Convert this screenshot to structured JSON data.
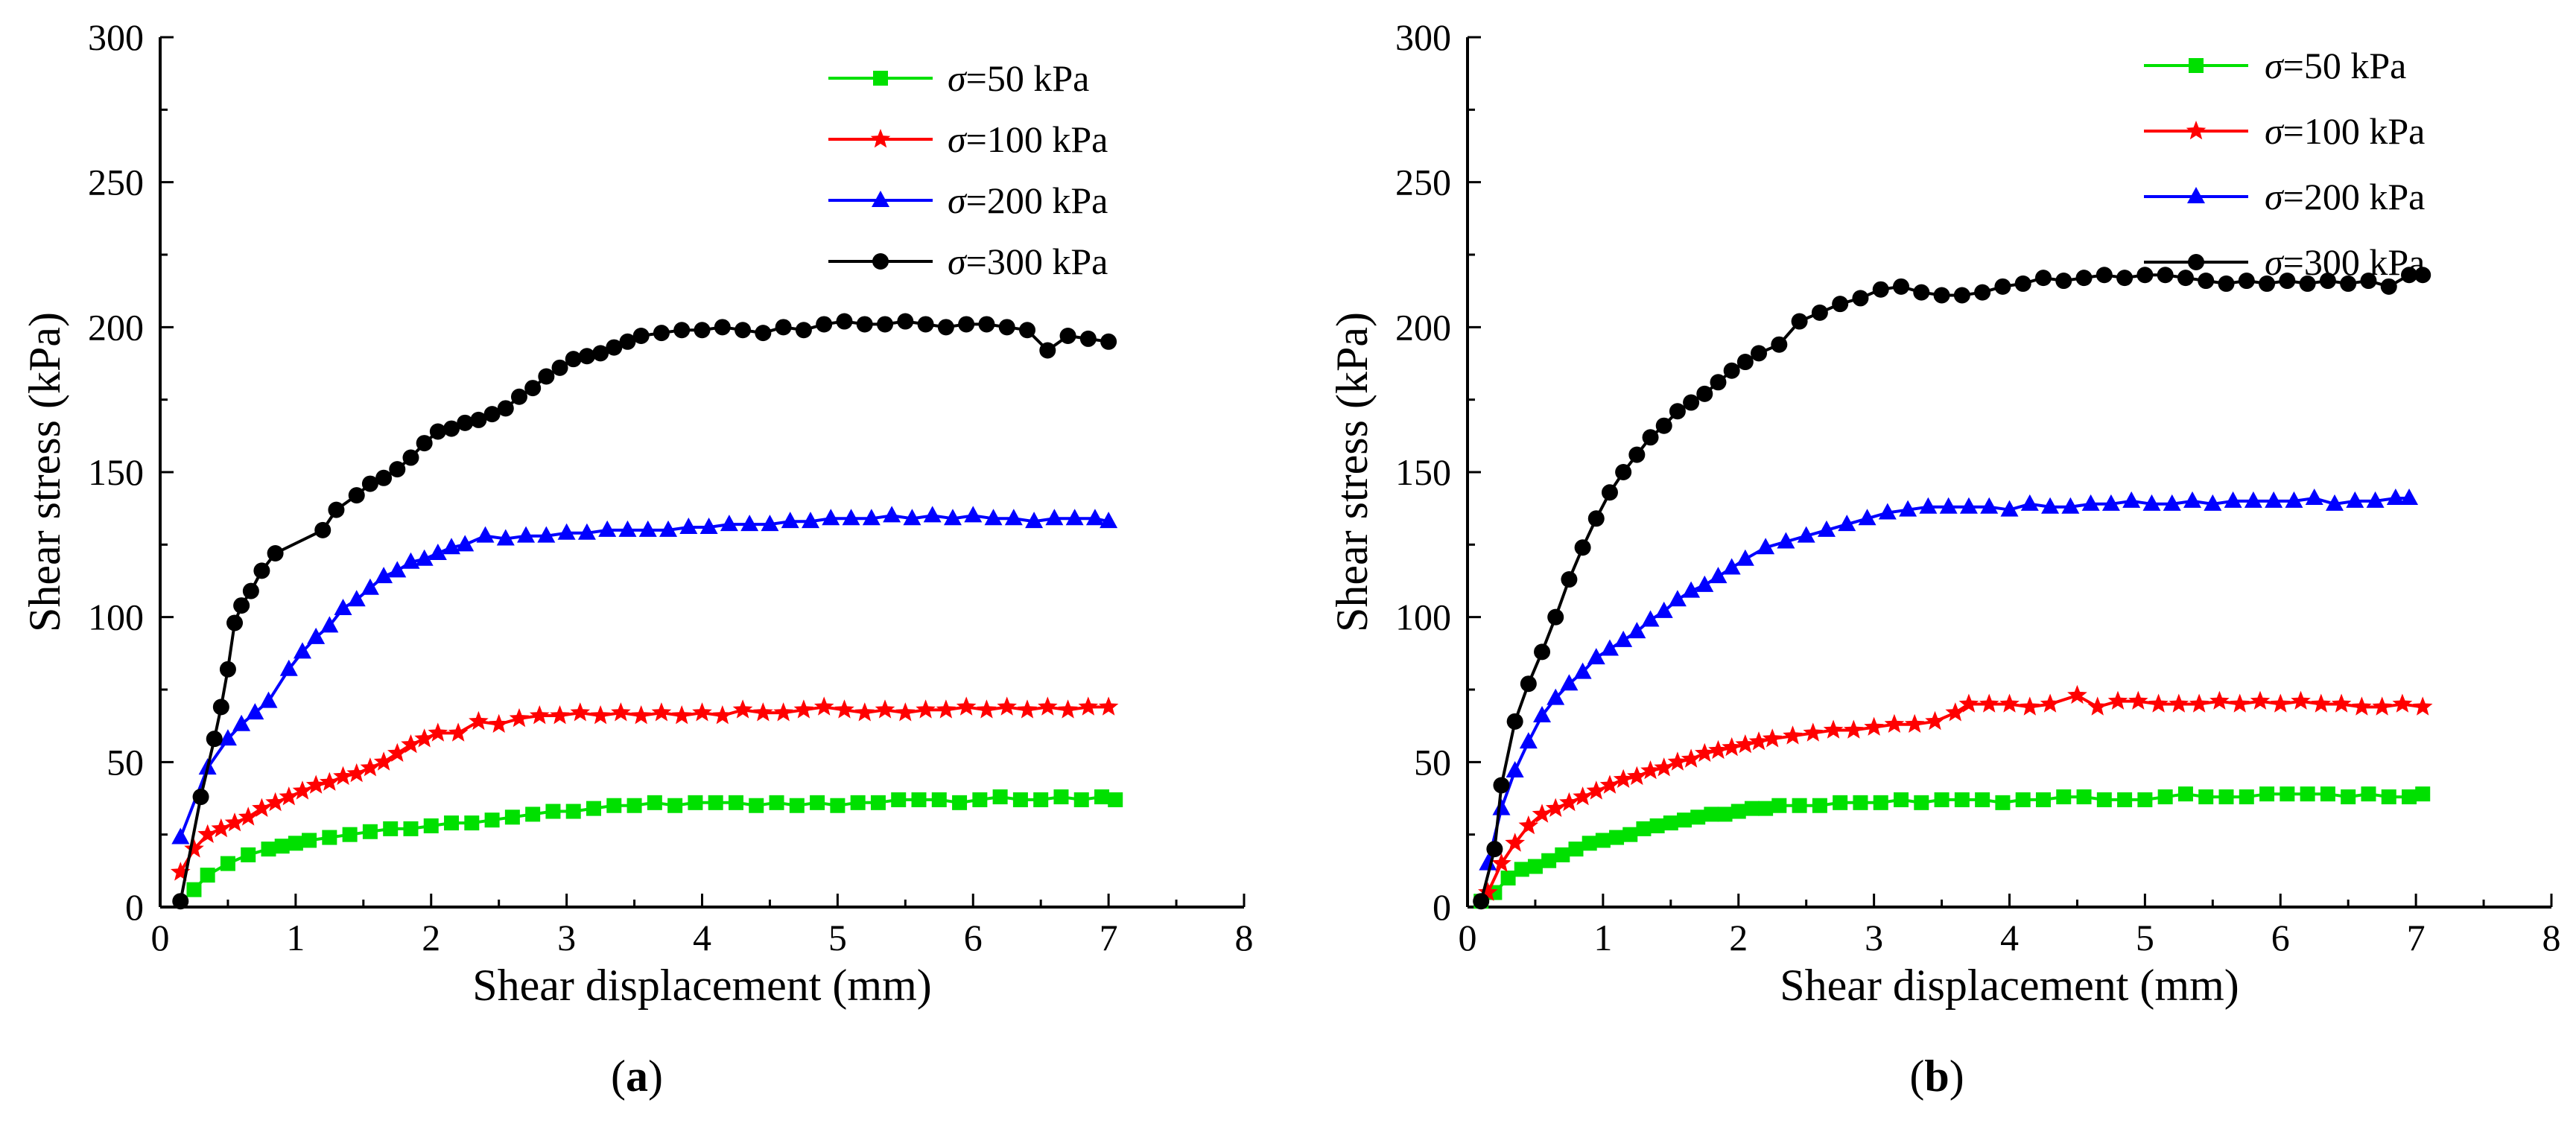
{
  "chart_data": [
    {
      "panel": "a",
      "caption": {
        "open": "(",
        "letter": "a",
        "close": ")"
      },
      "type": "line",
      "title": "",
      "xlabel": "Shear displacement (mm)",
      "ylabel": "Shear stress (kPa)",
      "xlim": [
        0,
        8
      ],
      "ylim": [
        0,
        300
      ],
      "xticks": [
        0,
        1,
        2,
        3,
        4,
        5,
        6,
        7,
        8
      ],
      "yticks": [
        0,
        50,
        100,
        150,
        200,
        250,
        300
      ],
      "grid": false,
      "legend_position": "top-right",
      "series": [
        {
          "name": "σ=50 kPa",
          "symbol": "σ",
          "label_rest": "=50 kPa",
          "color": "#00e000",
          "marker": "square",
          "x": [
            0.25,
            0.35,
            0.5,
            0.65,
            0.8,
            0.9,
            1.0,
            1.1,
            1.25,
            1.4,
            1.55,
            1.7,
            1.85,
            2.0,
            2.15,
            2.3,
            2.45,
            2.6,
            2.75,
            2.9,
            3.05,
            3.2,
            3.35,
            3.5,
            3.65,
            3.8,
            3.95,
            4.1,
            4.25,
            4.4,
            4.55,
            4.7,
            4.85,
            5.0,
            5.15,
            5.3,
            5.45,
            5.6,
            5.75,
            5.9,
            6.05,
            6.2,
            6.35,
            6.5,
            6.65,
            6.8,
            6.95,
            7.05
          ],
          "y": [
            6,
            11,
            15,
            18,
            20,
            21,
            22,
            23,
            24,
            25,
            26,
            27,
            27,
            28,
            29,
            29,
            30,
            31,
            32,
            33,
            33,
            34,
            35,
            35,
            36,
            35,
            36,
            36,
            36,
            35,
            36,
            35,
            36,
            35,
            36,
            36,
            37,
            37,
            37,
            36,
            37,
            38,
            37,
            37,
            38,
            37,
            38,
            37
          ]
        },
        {
          "name": "σ=100 kPa",
          "symbol": "σ",
          "label_rest": "=100 kPa",
          "color": "#ff0000",
          "marker": "star",
          "x": [
            0.15,
            0.25,
            0.35,
            0.45,
            0.55,
            0.65,
            0.75,
            0.85,
            0.95,
            1.05,
            1.15,
            1.25,
            1.35,
            1.45,
            1.55,
            1.65,
            1.75,
            1.85,
            1.95,
            2.05,
            2.2,
            2.35,
            2.5,
            2.65,
            2.8,
            2.95,
            3.1,
            3.25,
            3.4,
            3.55,
            3.7,
            3.85,
            4.0,
            4.15,
            4.3,
            4.45,
            4.6,
            4.75,
            4.9,
            5.05,
            5.2,
            5.35,
            5.5,
            5.65,
            5.8,
            5.95,
            6.1,
            6.25,
            6.4,
            6.55,
            6.7,
            6.85,
            7.0
          ],
          "y": [
            12,
            20,
            25,
            27,
            29,
            31,
            34,
            36,
            38,
            40,
            42,
            43,
            45,
            46,
            48,
            50,
            53,
            56,
            58,
            60,
            60,
            64,
            63,
            65,
            66,
            66,
            67,
            66,
            67,
            66,
            67,
            66,
            67,
            66,
            68,
            67,
            67,
            68,
            69,
            68,
            67,
            68,
            67,
            68,
            68,
            69,
            68,
            69,
            68,
            69,
            68,
            69,
            69
          ]
        },
        {
          "name": "σ=200 kPa",
          "symbol": "σ",
          "label_rest": "=200 kPa",
          "color": "#0000ff",
          "marker": "triangle",
          "x": [
            0.15,
            0.35,
            0.5,
            0.6,
            0.7,
            0.8,
            0.95,
            1.05,
            1.15,
            1.25,
            1.35,
            1.45,
            1.55,
            1.65,
            1.75,
            1.85,
            1.95,
            2.05,
            2.15,
            2.25,
            2.4,
            2.55,
            2.7,
            2.85,
            3.0,
            3.15,
            3.3,
            3.45,
            3.6,
            3.75,
            3.9,
            4.05,
            4.2,
            4.35,
            4.5,
            4.65,
            4.8,
            4.95,
            5.1,
            5.25,
            5.4,
            5.55,
            5.7,
            5.85,
            6.0,
            6.15,
            6.3,
            6.45,
            6.6,
            6.75,
            6.9,
            7.0
          ],
          "y": [
            24,
            48,
            58,
            63,
            67,
            71,
            82,
            88,
            93,
            97,
            103,
            106,
            110,
            114,
            116,
            119,
            120,
            122,
            124,
            125,
            128,
            127,
            128,
            128,
            129,
            129,
            130,
            130,
            130,
            130,
            131,
            131,
            132,
            132,
            132,
            133,
            133,
            134,
            134,
            134,
            135,
            134,
            135,
            134,
            135,
            134,
            134,
            133,
            134,
            134,
            134,
            133
          ]
        },
        {
          "name": "σ=300 kPa",
          "symbol": "σ",
          "label_rest": "=300 kPa",
          "color": "#000000",
          "marker": "circle",
          "x": [
            0.15,
            0.3,
            0.4,
            0.45,
            0.5,
            0.55,
            0.6,
            0.67,
            0.75,
            0.85,
            1.2,
            1.3,
            1.45,
            1.55,
            1.65,
            1.75,
            1.85,
            1.95,
            2.05,
            2.15,
            2.25,
            2.35,
            2.45,
            2.55,
            2.65,
            2.75,
            2.85,
            2.95,
            3.05,
            3.15,
            3.25,
            3.35,
            3.45,
            3.55,
            3.7,
            3.85,
            4.0,
            4.15,
            4.3,
            4.45,
            4.6,
            4.75,
            4.9,
            5.05,
            5.2,
            5.35,
            5.5,
            5.65,
            5.8,
            5.95,
            6.1,
            6.25,
            6.4,
            6.55,
            6.7,
            6.85,
            7.0
          ],
          "y": [
            2,
            38,
            58,
            69,
            82,
            98,
            104,
            109,
            116,
            122,
            130,
            137,
            142,
            146,
            148,
            151,
            155,
            160,
            164,
            165,
            167,
            168,
            170,
            172,
            176,
            179,
            183,
            186,
            189,
            190,
            191,
            193,
            195,
            197,
            198,
            199,
            199,
            200,
            199,
            198,
            200,
            199,
            201,
            202,
            201,
            201,
            202,
            201,
            200,
            201,
            201,
            200,
            199,
            192,
            197,
            196,
            195
          ]
        }
      ]
    },
    {
      "panel": "b",
      "caption": {
        "open": "(",
        "letter": "b",
        "close": ")"
      },
      "type": "line",
      "title": "",
      "xlabel": "Shear displacement (mm)",
      "ylabel": "Shear stress (kPa)",
      "xlim": [
        0,
        8
      ],
      "ylim": [
        0,
        300
      ],
      "xticks": [
        0,
        1,
        2,
        3,
        4,
        5,
        6,
        7,
        8
      ],
      "yticks": [
        0,
        50,
        100,
        150,
        200,
        250,
        300
      ],
      "grid": false,
      "legend_position": "top-right",
      "series": [
        {
          "name": "σ=50 kPa",
          "symbol": "σ",
          "label_rest": "=50 kPa",
          "color": "#00e000",
          "marker": "square",
          "x": [
            0.1,
            0.2,
            0.3,
            0.4,
            0.5,
            0.6,
            0.7,
            0.8,
            0.9,
            1.0,
            1.1,
            1.2,
            1.3,
            1.4,
            1.5,
            1.6,
            1.7,
            1.8,
            1.9,
            2.0,
            2.1,
            2.2,
            2.3,
            2.45,
            2.6,
            2.75,
            2.9,
            3.05,
            3.2,
            3.35,
            3.5,
            3.65,
            3.8,
            3.95,
            4.1,
            4.25,
            4.4,
            4.55,
            4.7,
            4.85,
            5.0,
            5.15,
            5.3,
            5.45,
            5.6,
            5.75,
            5.9,
            6.05,
            6.2,
            6.35,
            6.5,
            6.65,
            6.8,
            6.95,
            7.05
          ],
          "y": [
            2,
            5,
            10,
            13,
            14,
            16,
            18,
            20,
            22,
            23,
            24,
            25,
            27,
            28,
            29,
            30,
            31,
            32,
            32,
            33,
            34,
            34,
            35,
            35,
            35,
            36,
            36,
            36,
            37,
            36,
            37,
            37,
            37,
            36,
            37,
            37,
            38,
            38,
            37,
            37,
            37,
            38,
            39,
            38,
            38,
            38,
            39,
            39,
            39,
            39,
            38,
            39,
            38,
            38,
            39
          ]
        },
        {
          "name": "σ=100 kPa",
          "symbol": "σ",
          "label_rest": "=100 kPa",
          "color": "#ff0000",
          "marker": "star",
          "x": [
            0.15,
            0.25,
            0.35,
            0.45,
            0.55,
            0.65,
            0.75,
            0.85,
            0.95,
            1.05,
            1.15,
            1.25,
            1.35,
            1.45,
            1.55,
            1.65,
            1.75,
            1.85,
            1.95,
            2.05,
            2.15,
            2.25,
            2.4,
            2.55,
            2.7,
            2.85,
            3.0,
            3.15,
            3.3,
            3.45,
            3.6,
            3.7,
            3.85,
            4.0,
            4.15,
            4.3,
            4.5,
            4.65,
            4.8,
            4.95,
            5.1,
            5.25,
            5.4,
            5.55,
            5.7,
            5.85,
            6.0,
            6.15,
            6.3,
            6.45,
            6.6,
            6.75,
            6.9,
            7.05
          ],
          "y": [
            5,
            15,
            22,
            28,
            32,
            34,
            36,
            38,
            40,
            42,
            44,
            45,
            47,
            48,
            50,
            51,
            53,
            54,
            55,
            56,
            57,
            58,
            59,
            60,
            61,
            61,
            62,
            63,
            63,
            64,
            67,
            70,
            70,
            70,
            69,
            70,
            73,
            69,
            71,
            71,
            70,
            70,
            70,
            71,
            70,
            71,
            70,
            71,
            70,
            70,
            69,
            69,
            70,
            69
          ]
        },
        {
          "name": "σ=200 kPa",
          "symbol": "σ",
          "label_rest": "=200 kPa",
          "color": "#0000ff",
          "marker": "triangle",
          "x": [
            0.15,
            0.25,
            0.35,
            0.45,
            0.55,
            0.65,
            0.75,
            0.85,
            0.95,
            1.05,
            1.15,
            1.25,
            1.35,
            1.45,
            1.55,
            1.65,
            1.75,
            1.85,
            1.95,
            2.05,
            2.2,
            2.35,
            2.5,
            2.65,
            2.8,
            2.95,
            3.1,
            3.25,
            3.4,
            3.55,
            3.7,
            3.85,
            4.0,
            4.15,
            4.3,
            4.45,
            4.6,
            4.75,
            4.9,
            5.05,
            5.2,
            5.35,
            5.5,
            5.65,
            5.8,
            5.95,
            6.1,
            6.25,
            6.4,
            6.55,
            6.7,
            6.85,
            6.95
          ],
          "y": [
            15,
            34,
            47,
            57,
            66,
            72,
            77,
            81,
            86,
            89,
            92,
            95,
            99,
            102,
            106,
            109,
            111,
            114,
            117,
            120,
            124,
            126,
            128,
            130,
            132,
            134,
            136,
            137,
            138,
            138,
            138,
            138,
            137,
            139,
            138,
            138,
            139,
            139,
            140,
            139,
            139,
            140,
            139,
            140,
            140,
            140,
            140,
            141,
            139,
            140,
            140,
            141,
            141
          ]
        },
        {
          "name": "σ=300 kPa",
          "symbol": "σ",
          "label_rest": "=300 kPa",
          "color": "#000000",
          "marker": "circle",
          "x": [
            0.1,
            0.2,
            0.25,
            0.35,
            0.45,
            0.55,
            0.65,
            0.75,
            0.85,
            0.95,
            1.05,
            1.15,
            1.25,
            1.35,
            1.45,
            1.55,
            1.65,
            1.75,
            1.85,
            1.95,
            2.05,
            2.15,
            2.3,
            2.45,
            2.6,
            2.75,
            2.9,
            3.05,
            3.2,
            3.35,
            3.5,
            3.65,
            3.8,
            3.95,
            4.1,
            4.25,
            4.4,
            4.55,
            4.7,
            4.85,
            5.0,
            5.15,
            5.3,
            5.45,
            5.6,
            5.75,
            5.9,
            6.05,
            6.2,
            6.35,
            6.5,
            6.65,
            6.8,
            6.95,
            7.05
          ],
          "y": [
            2,
            20,
            42,
            64,
            77,
            88,
            100,
            113,
            124,
            134,
            143,
            150,
            156,
            162,
            166,
            171,
            174,
            177,
            181,
            185,
            188,
            191,
            194,
            202,
            205,
            208,
            210,
            213,
            214,
            212,
            211,
            211,
            212,
            214,
            215,
            217,
            216,
            217,
            218,
            217,
            218,
            218,
            217,
            216,
            215,
            216,
            215,
            216,
            215,
            216,
            215,
            216,
            214,
            218,
            218
          ]
        }
      ]
    }
  ]
}
